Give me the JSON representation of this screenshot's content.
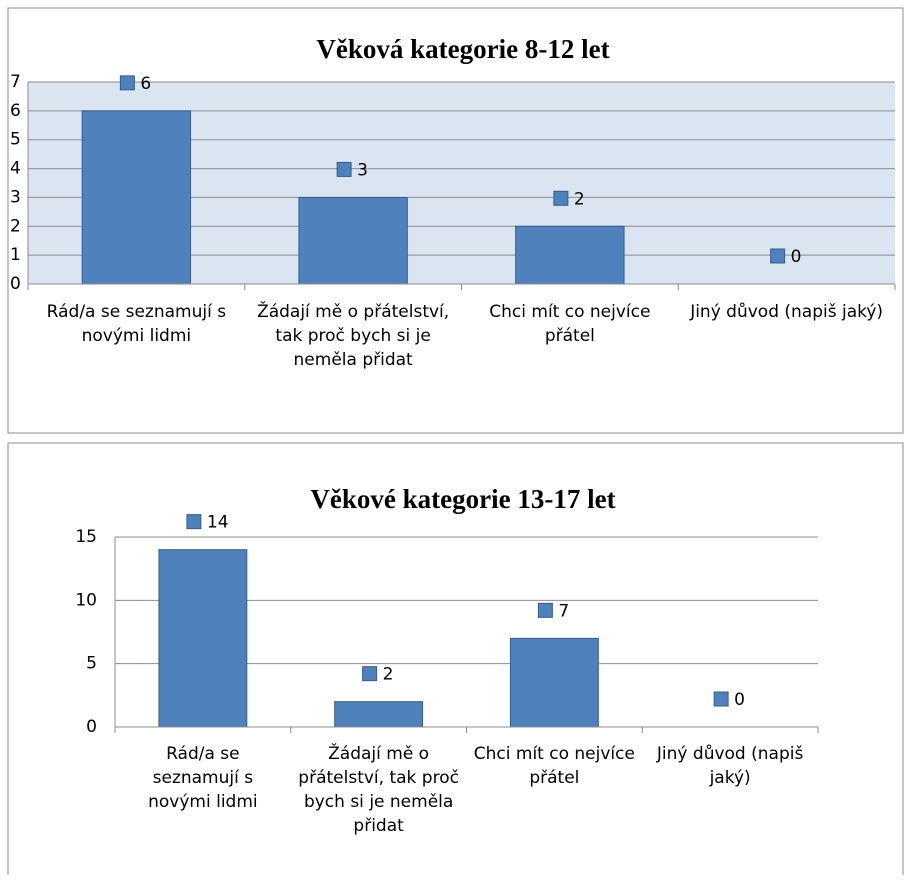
{
  "chart_data": [
    {
      "type": "bar",
      "title": "Věková kategorie 8-12 let",
      "categories": [
        "Rád/a se seznamují s novými lidmi",
        "Žádají mě o přátelství, tak proč bych si je neměla přidat",
        "Chci mít co nejvíce přátel",
        "Jiný důvod (napiš jaký)"
      ],
      "values": [
        6,
        3,
        2,
        0
      ],
      "color": "#4f81bd",
      "ylim": [
        0,
        7
      ],
      "yticks": [
        0,
        1,
        2,
        3,
        4,
        5,
        6,
        7
      ],
      "grid": true,
      "plot_background": "#dbe5f1"
    },
    {
      "type": "bar",
      "title": "Věkové kategorie 13-17 let",
      "categories": [
        "Rád/a se seznamují s novými lidmi",
        "Žádají mě o přátelství, tak proč bych si je neměla přidat",
        "Chci mít co nejvíce přátel",
        "Jiný důvod (napiš jaký)"
      ],
      "values": [
        14,
        2,
        7,
        0
      ],
      "color": "#4f81bd",
      "ylim": [
        0,
        15
      ],
      "yticks": [
        0,
        5,
        10,
        15
      ],
      "grid": true
    }
  ]
}
